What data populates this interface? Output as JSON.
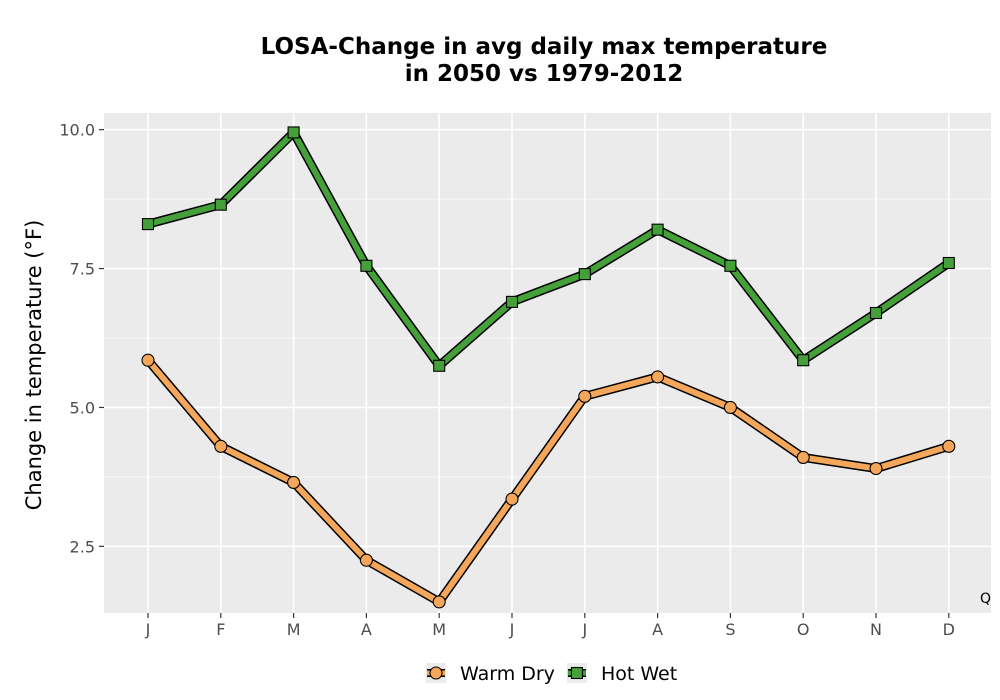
{
  "chart_data": {
    "type": "line",
    "title_line1": "LOSA-Change in avg daily max temperature",
    "title_line2": "in 2050 vs 1979-2012",
    "xlabel": "",
    "ylabel": "Change in temperature (°F)",
    "categories": [
      "J",
      "F",
      "M",
      "A",
      "M",
      "J",
      "J",
      "A",
      "S",
      "O",
      "N",
      "D"
    ],
    "ylim": [
      1.3,
      10.3
    ],
    "yticks": [
      2.5,
      5.0,
      7.5,
      10.0
    ],
    "ytick_labels": [
      "2.5",
      "5.0",
      "7.5",
      "10.0"
    ],
    "grid": true,
    "legend_position": "bottom",
    "annotation": "Q",
    "series": [
      {
        "name": "Warm Dry",
        "marker": "circle",
        "color": "#f4a65a",
        "values": [
          5.85,
          4.3,
          3.65,
          2.25,
          1.5,
          3.35,
          5.2,
          5.55,
          5.0,
          4.1,
          3.9,
          4.3
        ]
      },
      {
        "name": "Hot Wet",
        "marker": "square",
        "color": "#45a03a",
        "values": [
          8.3,
          8.65,
          9.95,
          7.55,
          5.75,
          6.9,
          7.4,
          8.2,
          7.55,
          5.85,
          6.7,
          7.6
        ]
      }
    ]
  }
}
